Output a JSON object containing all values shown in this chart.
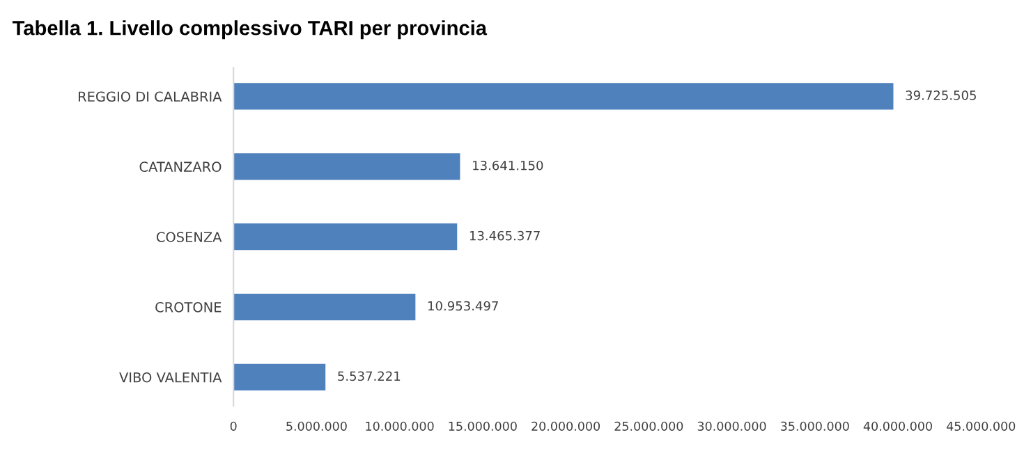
{
  "chart_data": {
    "type": "bar",
    "orientation": "horizontal",
    "title": "Tabella 1. Livello complessivo TARI per provincia",
    "categories": [
      "REGGIO DI CALABRIA",
      "CATANZARO",
      "COSENZA",
      "CROTONE",
      "VIBO VALENTIA"
    ],
    "values": [
      39725505,
      13641150,
      13465377,
      10953497,
      5537221
    ],
    "value_labels": [
      "39.725.505",
      "13.641.150",
      "13.465.377",
      "10.953.497",
      "5.537.221"
    ],
    "color": "#4f81bd",
    "xlim": [
      0,
      45000000
    ],
    "xticks": [
      0,
      {
        "value": 5000000,
        "label": "5.000.000"
      },
      {
        "value": 10000000,
        "label": "10.000.000"
      },
      {
        "value": 15000000,
        "label": "15.000.000"
      },
      {
        "value": 20000000,
        "label": "20.000.000"
      },
      {
        "value": 25000000,
        "label": "25.000.000"
      },
      {
        "value": 30000000,
        "label": "30.000.000"
      },
      {
        "value": 35000000,
        "label": "35.000.000"
      },
      {
        "value": 40000000,
        "label": "40.000.000"
      },
      {
        "value": 45000000,
        "label": "45.000.000"
      }
    ],
    "grid": false,
    "legend": false
  }
}
